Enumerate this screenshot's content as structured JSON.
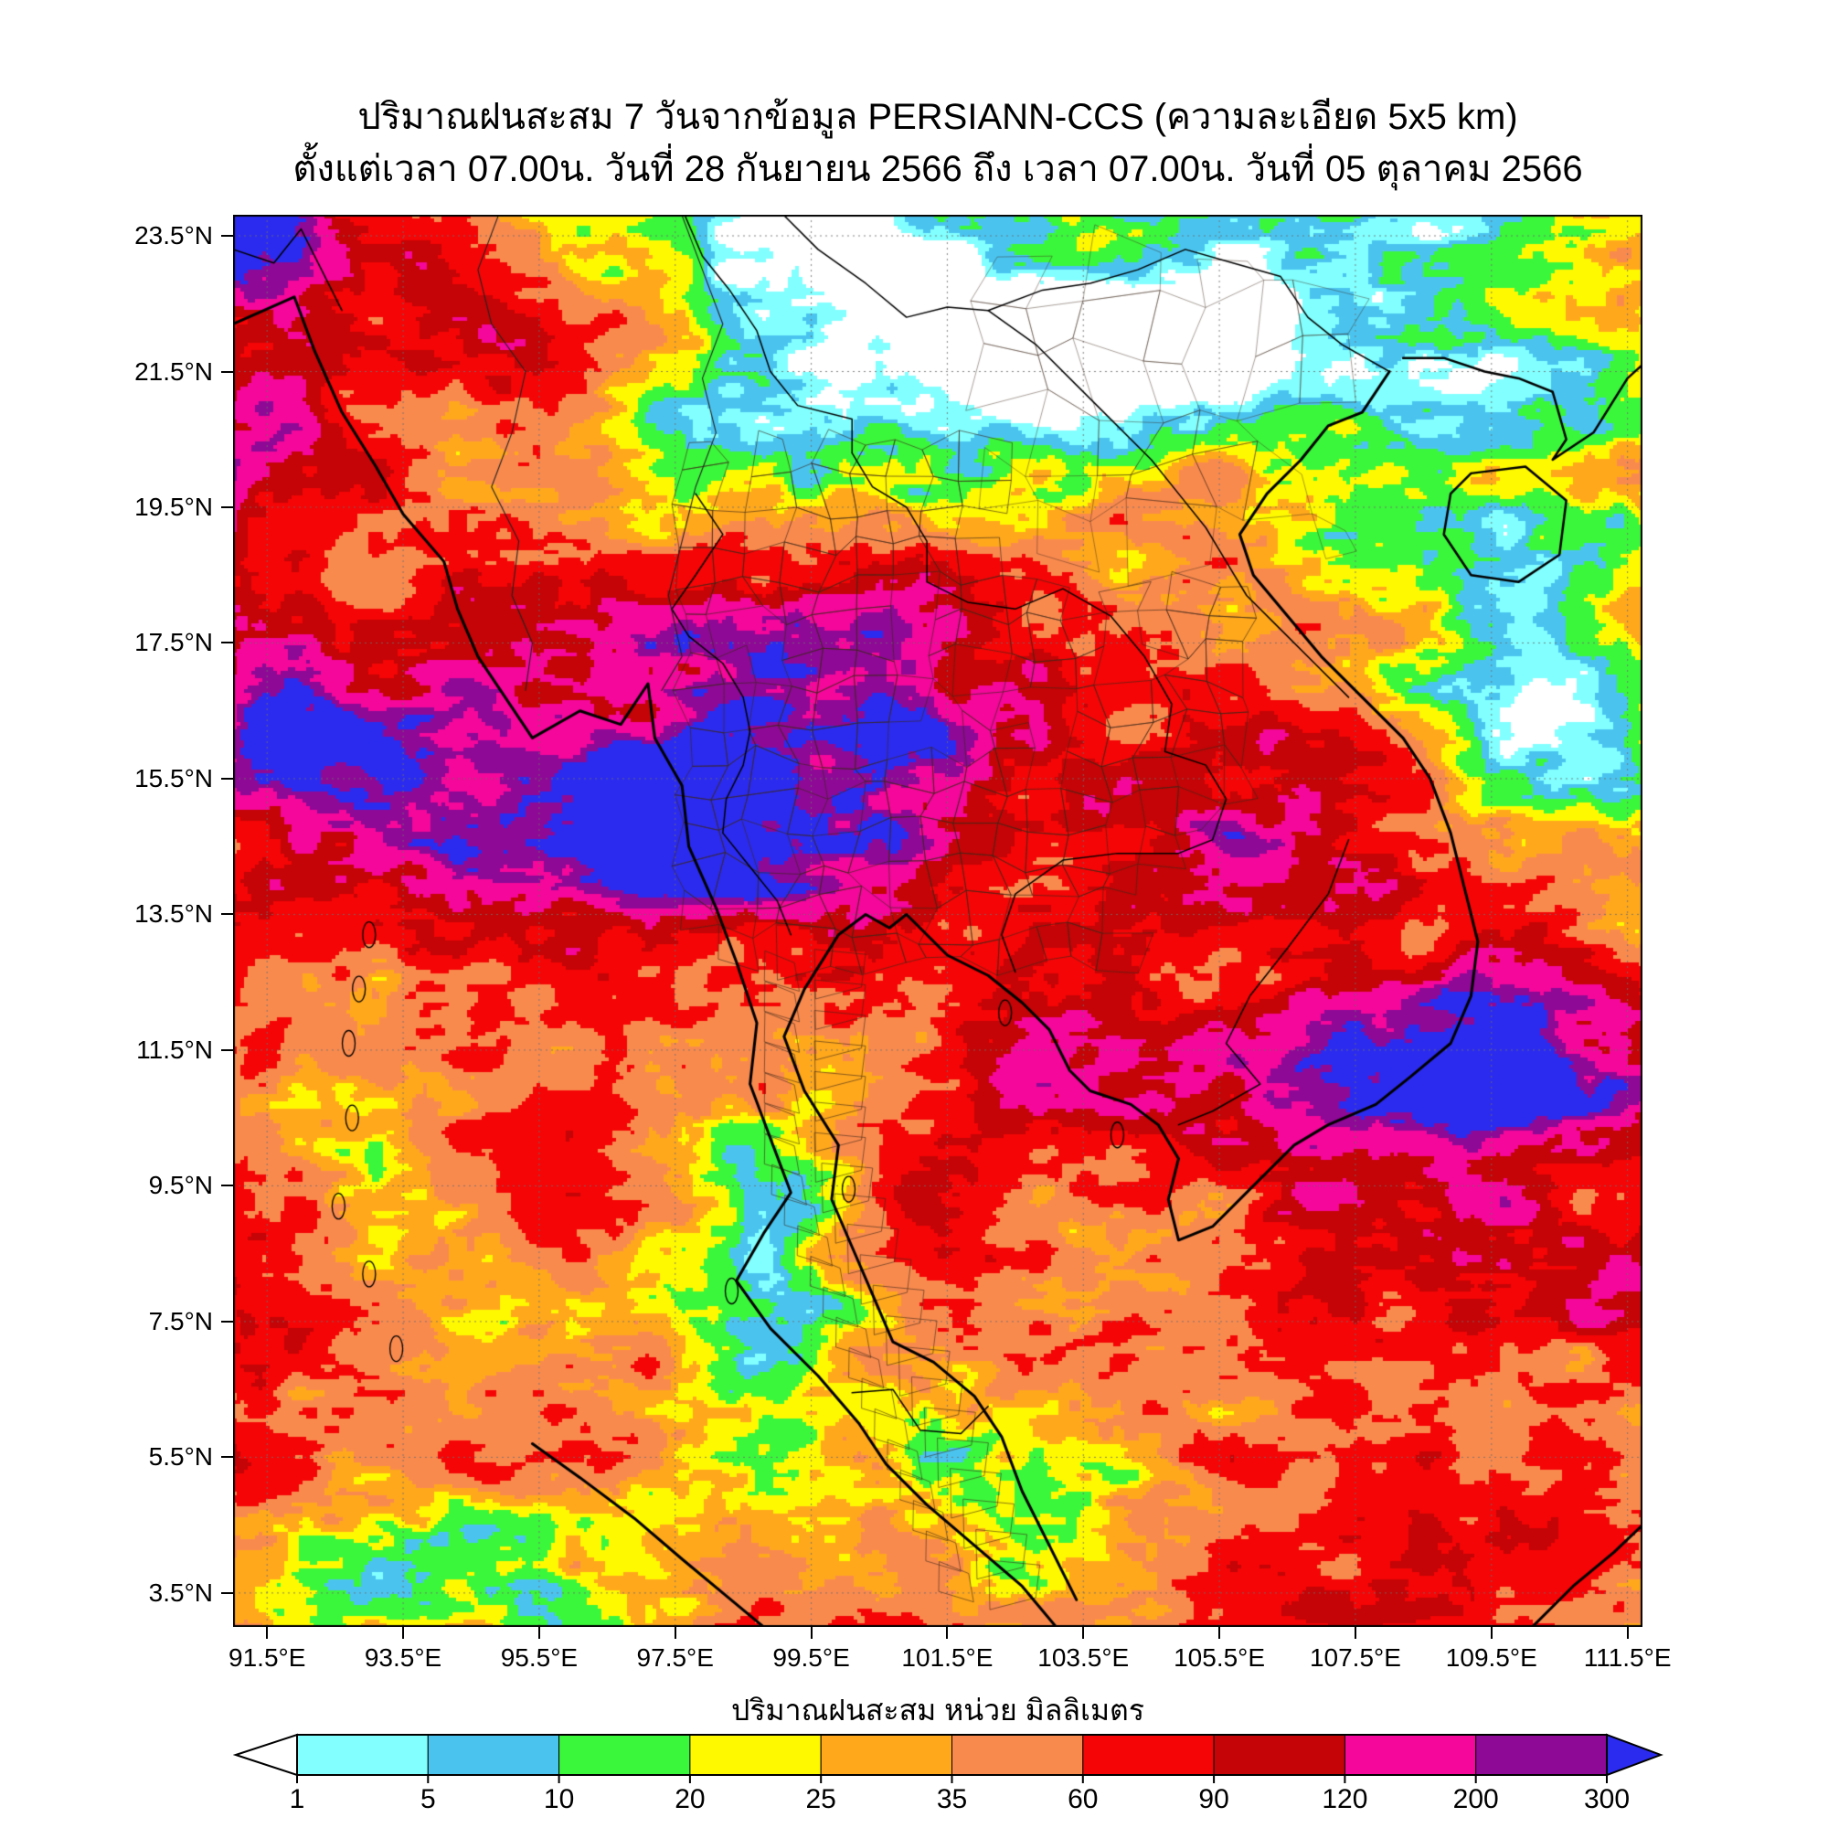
{
  "title": {
    "line1": "ปริมาณฝนสะสม 7 วันจากข้อมูล PERSIANN-CCS (ความละเอียด 5x5 km)",
    "line2": "ตั้งแต่เวลา 07.00น. วันที่ 28 กันยายน 2566 ถึง เวลา 07.00น. วันที่ 05 ตุลาคม 2566"
  },
  "axes": {
    "y_ticks": [
      "23.5°N",
      "21.5°N",
      "19.5°N",
      "17.5°N",
      "15.5°N",
      "13.5°N",
      "11.5°N",
      "9.5°N",
      "7.5°N",
      "5.5°N",
      "3.5°N"
    ],
    "x_ticks": [
      "91.5°E",
      "93.5°E",
      "95.5°E",
      "97.5°E",
      "99.5°E",
      "101.5°E",
      "103.5°E",
      "105.5°E",
      "107.5°E",
      "109.5°E",
      "111.5°E"
    ]
  },
  "colorbar": {
    "label": "ปริมาณฝนสะสม หน่วย มิลลิเมตร",
    "tick_labels": [
      "1",
      "5",
      "10",
      "20",
      "25",
      "35",
      "60",
      "90",
      "120",
      "200",
      "300"
    ],
    "under_color": "#FFFFFF",
    "segment_colors": [
      "#82FFFF",
      "#4AC4EF",
      "#3BF73B",
      "#FFF900",
      "#FFA81C",
      "#F98A4E",
      "#F50506",
      "#C40406",
      "#F4079A",
      "#8E0996"
    ],
    "over_color": "#2B2BF0"
  },
  "chart_data": {
    "type": "heatmap",
    "title": "ปริมาณฝนสะสม 7 วันจากข้อมูล PERSIANN-CCS (ความละเอียด 5x5 km)",
    "subtitle": "ตั้งแต่เวลา 07.00น. วันที่ 28 กันยายน 2566 ถึง เวลา 07.00น. วันที่ 05 ตุลาคม 2566",
    "dataset": "PERSIANN-CCS",
    "resolution": "5x5 km",
    "value_label": "ปริมาณฝนสะสม",
    "value_unit": "มิลลิเมตร (mm)",
    "x": {
      "label": "longitude",
      "unit": "°E",
      "ticks": [
        91.5,
        93.5,
        95.5,
        97.5,
        99.5,
        101.5,
        103.5,
        105.5,
        107.5,
        109.5,
        111.5
      ],
      "range": [
        91.0,
        111.72
      ]
    },
    "y": {
      "label": "latitude",
      "unit": "°N",
      "ticks": [
        23.5,
        21.5,
        19.5,
        17.5,
        15.5,
        13.5,
        11.5,
        9.5,
        7.5,
        5.5,
        3.5
      ],
      "range": [
        3.0,
        23.81
      ]
    },
    "grid": true,
    "legend_position": "bottom",
    "levels_mm": [
      1,
      5,
      10,
      20,
      25,
      35,
      60,
      90,
      120,
      200,
      300
    ],
    "palette": [
      {
        "range": "<1",
        "color": "#FFFFFF"
      },
      {
        "range": "1-5",
        "color": "#82FFFF"
      },
      {
        "range": "5-10",
        "color": "#4AC4EF"
      },
      {
        "range": "10-20",
        "color": "#3BF73B"
      },
      {
        "range": "20-25",
        "color": "#FFF900"
      },
      {
        "range": "25-35",
        "color": "#FFA81C"
      },
      {
        "range": "35-60",
        "color": "#F98A4E"
      },
      {
        "range": "60-90",
        "color": "#F50506"
      },
      {
        "range": "90-120",
        "color": "#C40406"
      },
      {
        "range": "120-200",
        "color": "#F4079A"
      },
      {
        "range": "200-300",
        "color": "#8E0996"
      },
      {
        "range": ">300",
        "color": "#2B2BF0"
      }
    ]
  }
}
